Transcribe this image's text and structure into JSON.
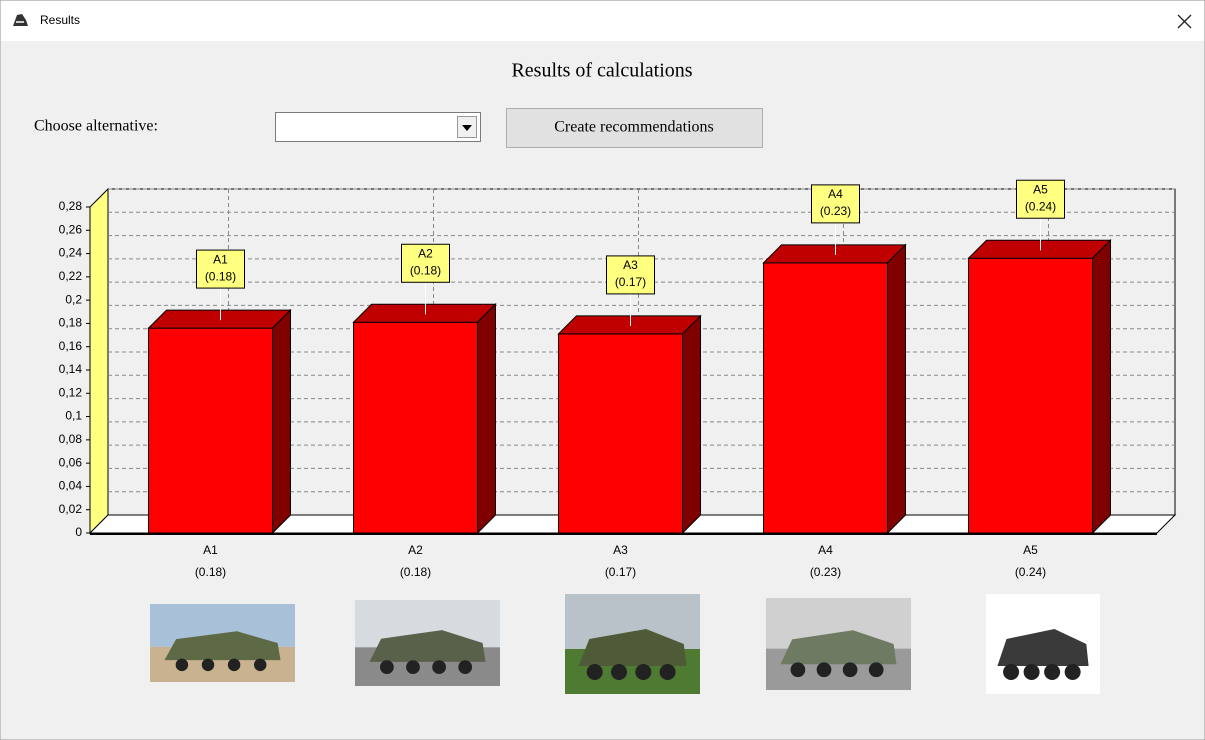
{
  "window": {
    "title": "Results"
  },
  "heading": "Results of calculations",
  "controls": {
    "choose_label": "Choose alternative:",
    "button": "Create recommendations"
  },
  "chart_data": {
    "type": "bar3d",
    "categories": [
      "A1",
      "A2",
      "A3",
      "A4",
      "A5"
    ],
    "values": [
      0.176,
      0.181,
      0.171,
      0.232,
      0.236
    ],
    "value_labels": [
      "(0.18)",
      "(0.18)",
      "(0.17)",
      "(0.23)",
      "(0.24)"
    ],
    "color": "#ff0000",
    "ylim": [
      0,
      0.28
    ],
    "yticks": [
      0,
      {
        "value": 0.02,
        "label": "0,02"
      },
      {
        "value": 0.04,
        "label": "0,04"
      },
      {
        "value": 0.06,
        "label": "0,06"
      },
      {
        "value": 0.08,
        "label": "0,08"
      },
      {
        "value": 0.1,
        "label": "0,1"
      },
      {
        "value": 0.12,
        "label": "0,12"
      },
      {
        "value": 0.14,
        "label": "0,14"
      },
      {
        "value": 0.16,
        "label": "0,16"
      },
      {
        "value": 0.18,
        "label": "0,18"
      },
      {
        "value": 0.2,
        "label": "0,2"
      },
      {
        "value": 0.22,
        "label": "0,22"
      },
      {
        "value": 0.24,
        "label": "0,24"
      },
      {
        "value": 0.26,
        "label": "0,26"
      },
      {
        "value": 0.28,
        "label": "0,28"
      }
    ],
    "grid": true
  }
}
